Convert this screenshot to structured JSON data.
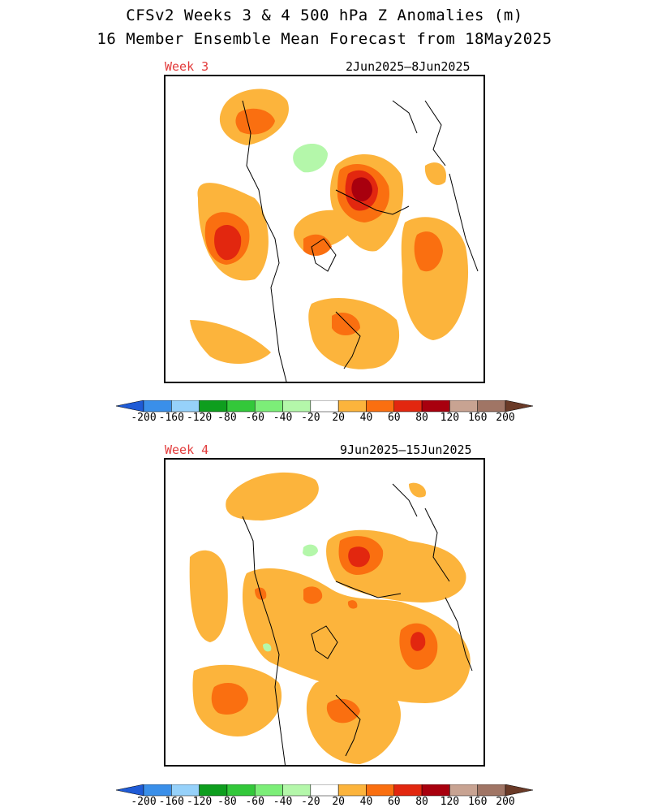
{
  "header": {
    "title_line1": "CFSv2 Weeks 3 & 4 500 hPa Z Anomalies (m)",
    "title_line2": "16 Member Ensemble Mean Forecast from 18May2025"
  },
  "panels": [
    {
      "week_label": "Week 3",
      "date_range": "2Jun2025–8Jun2025"
    },
    {
      "week_label": "Week 4",
      "date_range": "9Jun2025–15Jun2025"
    }
  ],
  "colorbar": {
    "labels": [
      "-200",
      "-160",
      "-120",
      "-80",
      "-60",
      "-40",
      "-20",
      "20",
      "40",
      "60",
      "80",
      "120",
      "160",
      "200"
    ],
    "colors": [
      "#1f5bd6",
      "#3a8fe9",
      "#96d1fa",
      "#0e9e1e",
      "#33c83a",
      "#7cee78",
      "#b4f7aa",
      "#ffffff",
      "#fcb43c",
      "#fa6f10",
      "#e2270f",
      "#a8000e",
      "#c8a392",
      "#a07565",
      "#6a3a27"
    ]
  }
}
